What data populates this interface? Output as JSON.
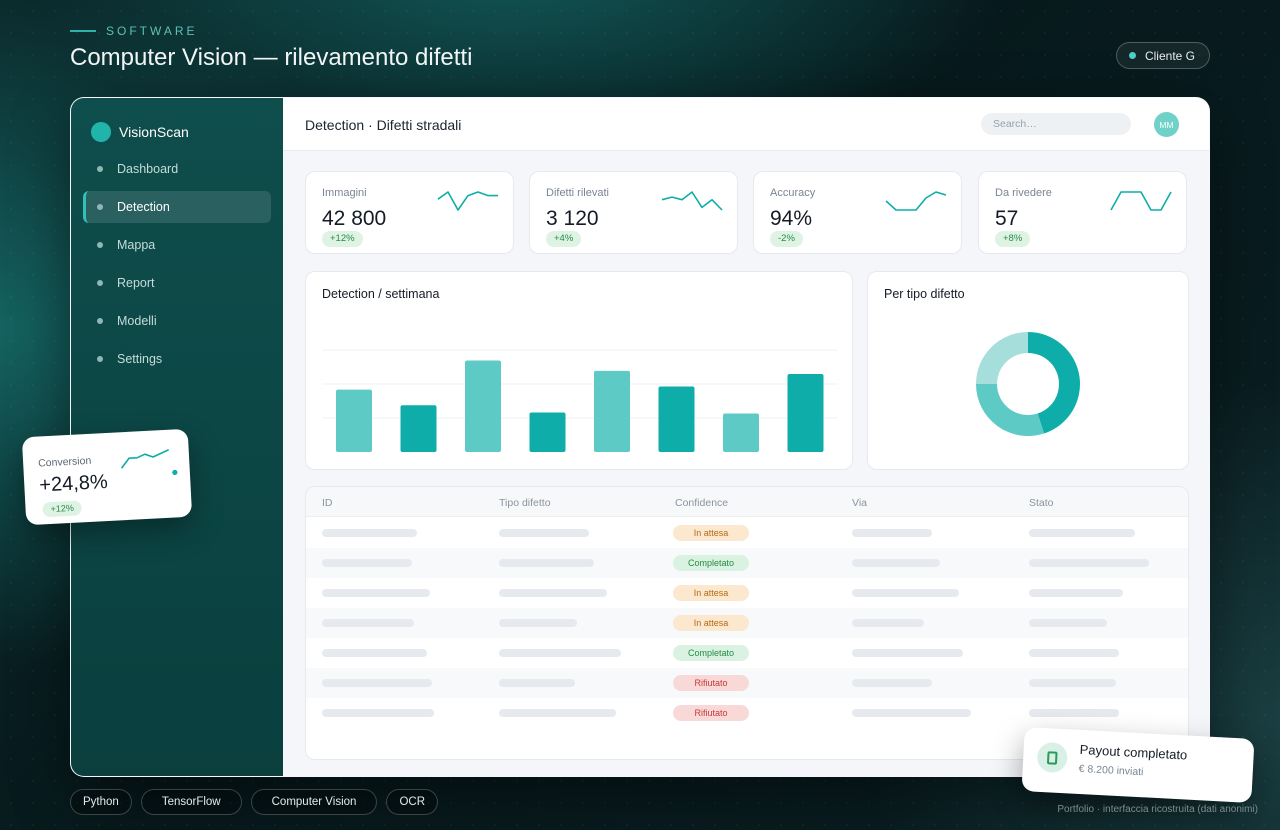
{
  "header": {
    "kicker": "SOFTWARE",
    "title": "Computer Vision — rilevamento difetti",
    "client": "Cliente G"
  },
  "app": {
    "brand": "VisionScan",
    "nav": [
      {
        "label": "Dashboard"
      },
      {
        "label": "Detection"
      },
      {
        "label": "Mappa"
      },
      {
        "label": "Report"
      },
      {
        "label": "Modelli"
      },
      {
        "label": "Settings"
      }
    ],
    "active_nav": "Detection",
    "page_title": "Detection · Difetti stradali",
    "search_placeholder": "Search…",
    "avatar_initials": "MM"
  },
  "kpis": [
    {
      "label": "Immagini",
      "value": "42 800",
      "delta": "+12%",
      "trend": [
        6,
        8,
        3,
        7,
        8,
        7,
        7
      ]
    },
    {
      "label": "Difetti rilevati",
      "value": "3 120",
      "delta": "+4%",
      "trend": [
        6,
        7,
        6,
        9,
        3,
        6,
        2
      ]
    },
    {
      "label": "Accuracy",
      "value": "94%",
      "delta": "-2%",
      "trend": [
        5,
        2,
        2,
        2,
        6,
        8,
        7
      ]
    },
    {
      "label": "Da rivedere",
      "value": "57",
      "delta": "+8%",
      "trend": [
        7,
        8,
        8,
        8,
        7,
        7,
        8
      ]
    }
  ],
  "colors": {
    "accent": "#0fada9",
    "accent_light": "#5ecac6",
    "accent_pale": "#a5dedb",
    "pill_pending_bg": "#fbe8cf",
    "pill_pending_fg": "#b66a14",
    "pill_done_bg": "#d9f2e1",
    "pill_done_fg": "#268a45",
    "pill_rejected_bg": "#f9d8d8",
    "pill_rejected_fg": "#c63a3a"
  },
  "bar_chart": {
    "title": "Detection / settimana",
    "chart_data": {
      "type": "bar",
      "title": "Detection / settimana",
      "categories": [
        "",
        "",
        "",
        "",
        "",
        "",
        "",
        ""
      ],
      "values": [
        60,
        45,
        88,
        38,
        78,
        63,
        37,
        75
      ],
      "ylim": [
        0,
        100
      ],
      "grid": true
    }
  },
  "donut_chart": {
    "title": "Per tipo difetto",
    "chart_data": {
      "type": "pie",
      "title": "Per tipo difetto",
      "values": [
        45,
        30,
        25
      ],
      "donut": true
    }
  },
  "table": {
    "columns": [
      "ID",
      "Tipo difetto",
      "Confidence",
      "Via",
      "Stato"
    ],
    "rows": [
      {
        "status": "In attesa",
        "kind": "pending"
      },
      {
        "status": "Completato",
        "kind": "done"
      },
      {
        "status": "In attesa",
        "kind": "pending"
      },
      {
        "status": "In attesa",
        "kind": "pending"
      },
      {
        "status": "Completato",
        "kind": "done"
      },
      {
        "status": "Rifiutato",
        "kind": "rejected"
      },
      {
        "status": "Rifiutato",
        "kind": "rejected"
      }
    ]
  },
  "conversion_card": {
    "label": "Conversion",
    "value": "+24,8%",
    "delta": "+12%",
    "trend": [
      2,
      5,
      5,
      6,
      5,
      6,
      7
    ]
  },
  "payout_card": {
    "title": "Payout completato",
    "subtitle": "€ 8.200 inviati"
  },
  "tags": [
    "Python",
    "TensorFlow",
    "Computer Vision",
    "OCR"
  ],
  "footer": "Portfolio · interfaccia ricostruita (dati anonimi)"
}
